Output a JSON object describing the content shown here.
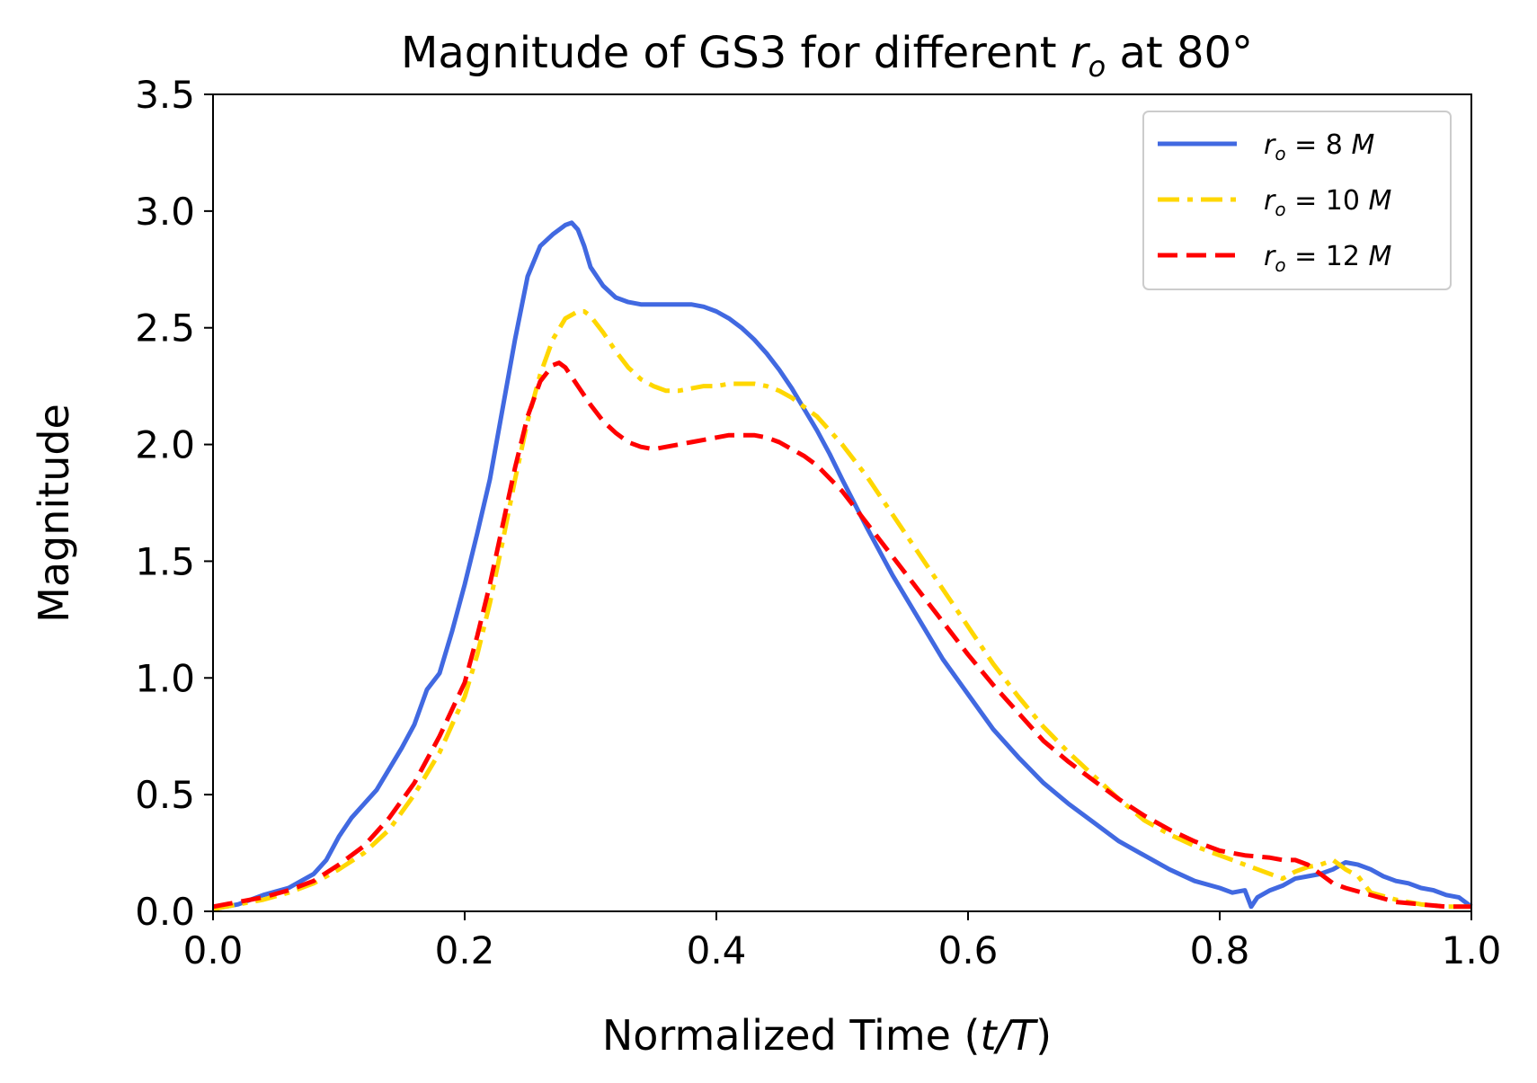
{
  "chart_data": {
    "type": "line",
    "title_prefix": "Magnitude of GS3 for different ",
    "title_var": "r",
    "title_sub": "o",
    "title_suffix": " at 80°",
    "xlabel_prefix": "Normalized Time (",
    "xlabel_var": "t/T",
    "xlabel_suffix": ")",
    "ylabel": "Magnitude",
    "xlim": [
      0.0,
      1.0
    ],
    "ylim": [
      0.0,
      3.5
    ],
    "xticks": [
      0.0,
      0.2,
      0.4,
      0.6,
      0.8,
      1.0
    ],
    "xtick_labels": [
      "0.0",
      "0.2",
      "0.4",
      "0.6",
      "0.8",
      "1.0"
    ],
    "yticks": [
      0.0,
      0.5,
      1.0,
      1.5,
      2.0,
      2.5,
      3.0,
      3.5
    ],
    "ytick_labels": [
      "0.0",
      "0.5",
      "1.0",
      "1.5",
      "2.0",
      "2.5",
      "3.0",
      "3.5"
    ],
    "grid": false,
    "legend_position": "top-right",
    "series": [
      {
        "name": "r_o = 8 M",
        "legend_label": "r_o = 8 M",
        "legend_var": "r",
        "legend_sub": "o",
        "legend_rest": " = 8 ",
        "legend_unit": "M",
        "color": "#4169e1",
        "style": "solid",
        "x": [
          0.0,
          0.02,
          0.04,
          0.06,
          0.08,
          0.09,
          0.1,
          0.11,
          0.12,
          0.13,
          0.14,
          0.15,
          0.16,
          0.17,
          0.18,
          0.19,
          0.2,
          0.21,
          0.22,
          0.23,
          0.24,
          0.25,
          0.26,
          0.27,
          0.28,
          0.285,
          0.29,
          0.295,
          0.3,
          0.31,
          0.32,
          0.33,
          0.34,
          0.35,
          0.36,
          0.37,
          0.38,
          0.39,
          0.4,
          0.41,
          0.42,
          0.43,
          0.44,
          0.45,
          0.46,
          0.47,
          0.48,
          0.49,
          0.5,
          0.52,
          0.54,
          0.56,
          0.58,
          0.6,
          0.62,
          0.64,
          0.66,
          0.68,
          0.7,
          0.72,
          0.74,
          0.76,
          0.78,
          0.8,
          0.81,
          0.82,
          0.825,
          0.83,
          0.84,
          0.85,
          0.86,
          0.87,
          0.88,
          0.89,
          0.9,
          0.91,
          0.92,
          0.93,
          0.94,
          0.95,
          0.96,
          0.97,
          0.98,
          0.99,
          1.0
        ],
        "y": [
          0.01,
          0.03,
          0.07,
          0.1,
          0.16,
          0.22,
          0.32,
          0.4,
          0.46,
          0.52,
          0.61,
          0.7,
          0.8,
          0.95,
          1.02,
          1.2,
          1.4,
          1.62,
          1.85,
          2.15,
          2.45,
          2.72,
          2.85,
          2.9,
          2.94,
          2.95,
          2.92,
          2.85,
          2.76,
          2.68,
          2.63,
          2.61,
          2.6,
          2.6,
          2.6,
          2.6,
          2.6,
          2.59,
          2.57,
          2.54,
          2.5,
          2.45,
          2.39,
          2.32,
          2.24,
          2.15,
          2.06,
          1.96,
          1.85,
          1.64,
          1.44,
          1.26,
          1.08,
          0.93,
          0.78,
          0.66,
          0.55,
          0.46,
          0.38,
          0.3,
          0.24,
          0.18,
          0.13,
          0.1,
          0.08,
          0.09,
          0.02,
          0.06,
          0.09,
          0.11,
          0.14,
          0.15,
          0.16,
          0.18,
          0.21,
          0.2,
          0.18,
          0.15,
          0.13,
          0.12,
          0.1,
          0.09,
          0.07,
          0.06,
          0.02
        ]
      },
      {
        "name": "r_o = 10 M",
        "legend_label": "r_o = 10 M",
        "legend_var": "r",
        "legend_sub": "o",
        "legend_rest": " = 10 ",
        "legend_unit": "M",
        "color": "#ffd700",
        "style": "dashdot",
        "x": [
          0.0,
          0.02,
          0.04,
          0.06,
          0.08,
          0.1,
          0.12,
          0.14,
          0.16,
          0.18,
          0.2,
          0.21,
          0.22,
          0.23,
          0.24,
          0.25,
          0.26,
          0.27,
          0.28,
          0.29,
          0.295,
          0.3,
          0.31,
          0.32,
          0.33,
          0.34,
          0.35,
          0.36,
          0.37,
          0.38,
          0.39,
          0.4,
          0.41,
          0.42,
          0.43,
          0.44,
          0.45,
          0.46,
          0.47,
          0.48,
          0.5,
          0.52,
          0.54,
          0.56,
          0.58,
          0.6,
          0.62,
          0.64,
          0.66,
          0.68,
          0.7,
          0.72,
          0.74,
          0.76,
          0.78,
          0.8,
          0.82,
          0.84,
          0.85,
          0.86,
          0.87,
          0.88,
          0.89,
          0.9,
          0.91,
          0.92,
          0.94,
          0.96,
          0.98,
          1.0
        ],
        "y": [
          0.01,
          0.03,
          0.05,
          0.08,
          0.12,
          0.18,
          0.25,
          0.35,
          0.5,
          0.68,
          0.92,
          1.1,
          1.32,
          1.58,
          1.85,
          2.1,
          2.3,
          2.45,
          2.54,
          2.57,
          2.57,
          2.55,
          2.48,
          2.4,
          2.33,
          2.28,
          2.25,
          2.23,
          2.23,
          2.24,
          2.25,
          2.25,
          2.26,
          2.26,
          2.26,
          2.25,
          2.23,
          2.2,
          2.16,
          2.12,
          2.0,
          1.86,
          1.7,
          1.54,
          1.38,
          1.22,
          1.06,
          0.92,
          0.79,
          0.68,
          0.58,
          0.48,
          0.39,
          0.33,
          0.28,
          0.24,
          0.2,
          0.16,
          0.14,
          0.17,
          0.19,
          0.2,
          0.22,
          0.18,
          0.15,
          0.08,
          0.05,
          0.03,
          0.02,
          0.02
        ]
      },
      {
        "name": "r_o = 12 M",
        "legend_label": "r_o = 12 M",
        "legend_var": "r",
        "legend_sub": "o",
        "legend_rest": " = 12 ",
        "legend_unit": "M",
        "color": "#ff0000",
        "style": "dashed",
        "x": [
          0.0,
          0.02,
          0.04,
          0.06,
          0.08,
          0.1,
          0.12,
          0.14,
          0.16,
          0.18,
          0.2,
          0.21,
          0.22,
          0.23,
          0.24,
          0.25,
          0.26,
          0.27,
          0.275,
          0.28,
          0.29,
          0.3,
          0.31,
          0.32,
          0.33,
          0.34,
          0.35,
          0.36,
          0.37,
          0.38,
          0.39,
          0.4,
          0.41,
          0.42,
          0.43,
          0.44,
          0.45,
          0.46,
          0.47,
          0.48,
          0.5,
          0.52,
          0.54,
          0.56,
          0.58,
          0.6,
          0.62,
          0.64,
          0.66,
          0.68,
          0.7,
          0.72,
          0.74,
          0.76,
          0.78,
          0.8,
          0.82,
          0.84,
          0.85,
          0.86,
          0.87,
          0.88,
          0.89,
          0.9,
          0.92,
          0.94,
          0.96,
          0.98,
          1.0
        ],
        "y": [
          0.02,
          0.04,
          0.06,
          0.09,
          0.13,
          0.2,
          0.28,
          0.4,
          0.55,
          0.75,
          0.98,
          1.18,
          1.4,
          1.65,
          1.9,
          2.12,
          2.27,
          2.34,
          2.35,
          2.33,
          2.25,
          2.17,
          2.1,
          2.05,
          2.01,
          1.99,
          1.98,
          1.99,
          2.0,
          2.01,
          2.02,
          2.03,
          2.04,
          2.04,
          2.04,
          2.03,
          2.01,
          1.98,
          1.95,
          1.91,
          1.8,
          1.66,
          1.52,
          1.38,
          1.24,
          1.1,
          0.97,
          0.85,
          0.73,
          0.64,
          0.56,
          0.48,
          0.41,
          0.35,
          0.3,
          0.26,
          0.24,
          0.23,
          0.22,
          0.22,
          0.2,
          0.16,
          0.12,
          0.1,
          0.07,
          0.04,
          0.03,
          0.02,
          0.02
        ]
      }
    ]
  }
}
